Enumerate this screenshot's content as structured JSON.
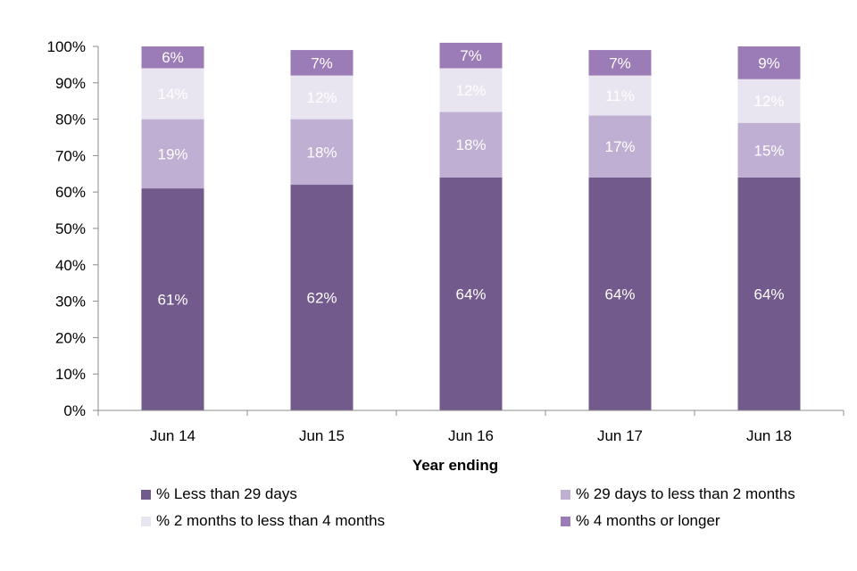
{
  "chart_data": {
    "type": "bar",
    "stacked": true,
    "categories": [
      "Jun 14",
      "Jun 15",
      "Jun 16",
      "Jun 17",
      "Jun 18"
    ],
    "series": [
      {
        "name": "% Less than 29 days",
        "values": [
          61,
          62,
          64,
          64,
          64
        ],
        "labels": [
          "61%",
          "62%",
          "64%",
          "64%",
          "64%"
        ],
        "color": "#735a8c"
      },
      {
        "name": "% 29 days to less than 2 months",
        "values": [
          19,
          18,
          18,
          17,
          15
        ],
        "labels": [
          "19%",
          "18%",
          "18%",
          "17%",
          "15%"
        ],
        "color": "#bfb0d3"
      },
      {
        "name": "% 2 months to less than 4 months",
        "values": [
          14,
          12,
          12,
          11,
          12
        ],
        "labels": [
          "14%",
          "12%",
          "12%",
          "11%",
          "12%"
        ],
        "color": "#e9e5f0"
      },
      {
        "name": "% 4 months or longer",
        "values": [
          6,
          7,
          7,
          7,
          9
        ],
        "labels": [
          "6%",
          "7%",
          "7%",
          "7%",
          "9%"
        ],
        "color": "#9b7cb6"
      }
    ],
    "yticks": [
      "0%",
      "10%",
      "20%",
      "30%",
      "40%",
      "50%",
      "60%",
      "70%",
      "80%",
      "90%",
      "100%"
    ],
    "ylim": [
      0,
      100
    ],
    "xlabel": "Year ending",
    "ylabel": "",
    "grid": false,
    "legend_position": "bottom"
  }
}
